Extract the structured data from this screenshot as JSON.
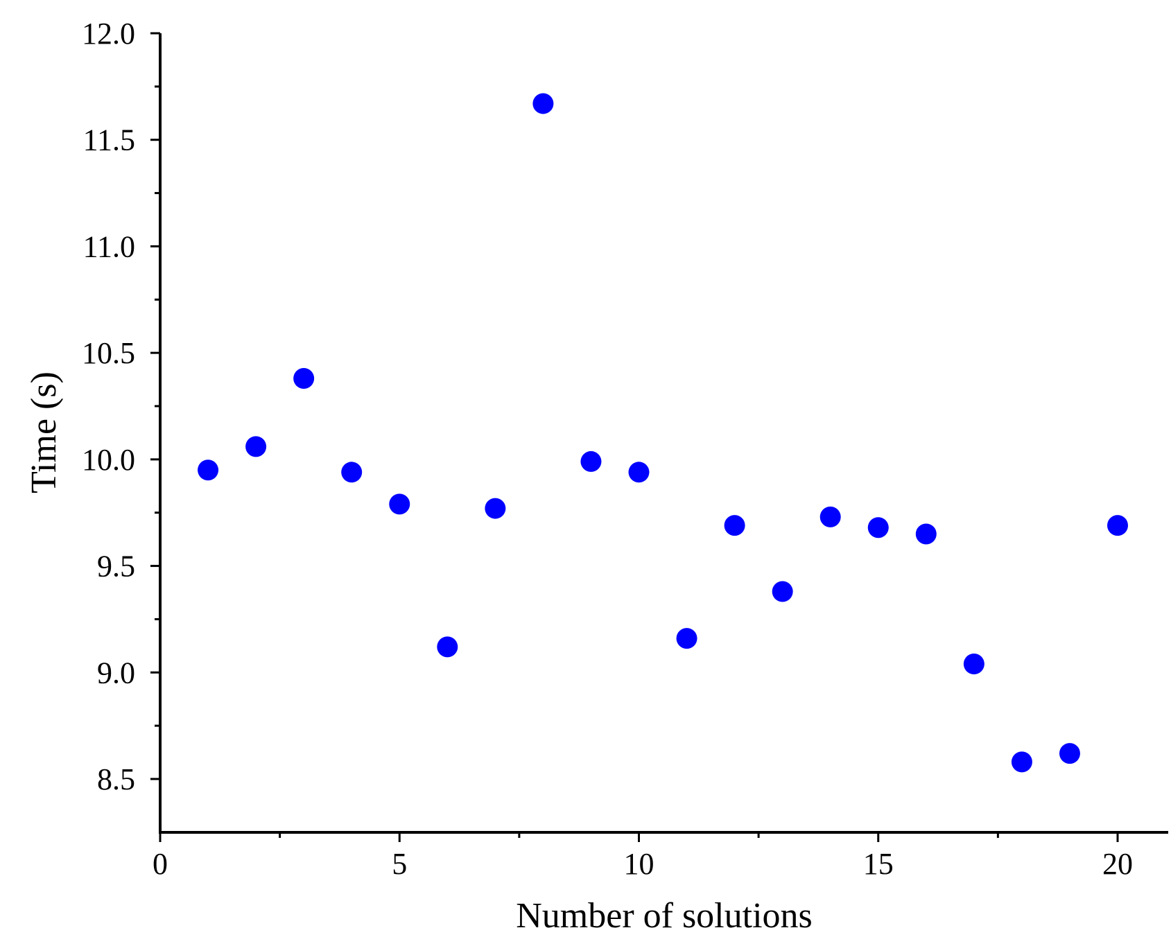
{
  "chart_data": {
    "type": "scatter",
    "title": "",
    "xlabel": "Number of solutions",
    "ylabel": "Time (s)",
    "xlim": [
      0,
      21
    ],
    "ylim": [
      8.25,
      12.0
    ],
    "x_major_ticks": [
      0,
      5,
      10,
      15,
      20
    ],
    "x_minor_ticks": [
      2.5,
      7.5,
      12.5,
      17.5
    ],
    "y_major_ticks": [
      8.5,
      9.0,
      9.5,
      10.0,
      10.5,
      11.0,
      11.5,
      12.0
    ],
    "y_minor_ticks": [
      8.75,
      9.25,
      9.75,
      10.25,
      10.75,
      11.25,
      11.75
    ],
    "x_tick_labels": [
      "0",
      "5",
      "10",
      "15",
      "20"
    ],
    "y_tick_labels": [
      "8.5",
      "9.0",
      "9.5",
      "10.0",
      "10.5",
      "11.0",
      "11.5",
      "12.0"
    ],
    "grid": false,
    "legend": false,
    "marker_color": "#0000ff",
    "series": [
      {
        "x": [
          1,
          2,
          3,
          4,
          5,
          6,
          7,
          8,
          9,
          10,
          11,
          12,
          13,
          14,
          15,
          16,
          17,
          18,
          19,
          20
        ],
        "y": [
          9.95,
          10.06,
          10.38,
          9.94,
          9.79,
          9.12,
          9.77,
          11.67,
          9.99,
          9.94,
          9.16,
          9.69,
          9.38,
          9.73,
          9.68,
          9.65,
          9.04,
          8.58,
          8.62,
          9.69
        ]
      }
    ]
  }
}
